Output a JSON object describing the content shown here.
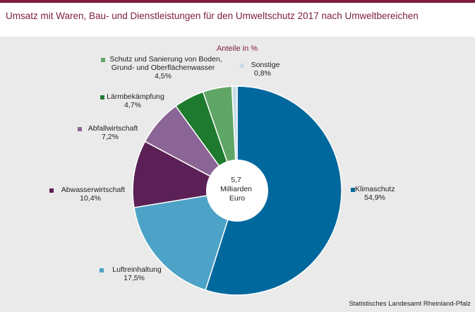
{
  "title": "Umsatz mit Waren, Bau- und Dienstleistungen für den Umweltschutz 2017 nach Umweltbereichen",
  "subtitle": "Anteile in %",
  "center_label": [
    "5,7",
    "Milliarden",
    "Euro"
  ],
  "source": "Statistisches Landesamt Rheinland-Pfalz",
  "chart_data": {
    "type": "pie",
    "title": "Umsatz mit Waren, Bau- und Dienstleistungen für den Umweltschutz 2017 nach Umweltbereichen",
    "subtitle": "Anteile in %",
    "unit": "%",
    "categories": [
      "Klimaschutz",
      "Luftreinhaltung",
      "Abwasserwirtschaft",
      "Abfallwirtschaft",
      "Lärmbekämpfung",
      "Schutz und Sanierung von Boden, Grund- und Oberflächenwasser",
      "Sonstige"
    ],
    "values": [
      54.9,
      17.5,
      10.4,
      7.2,
      4.7,
      4.5,
      0.8
    ],
    "value_labels": [
      "54,9%",
      "17,5%",
      "10,4%",
      "7,2%",
      "4,7%",
      "4,5%",
      "0,8%"
    ],
    "colors": [
      "#00689d",
      "#4da3c7",
      "#5b2157",
      "#8b6595",
      "#1e7a2e",
      "#5fa565",
      "#c8dce8"
    ],
    "legend_placement": "labels next to slices"
  }
}
